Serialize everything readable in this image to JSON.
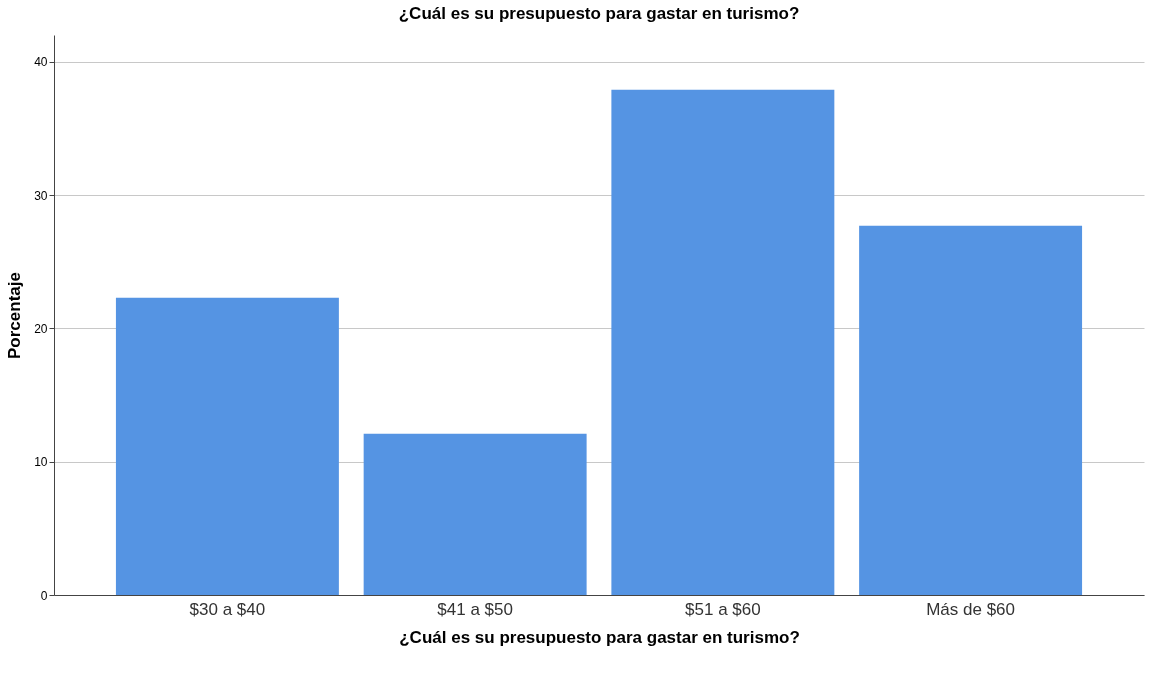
{
  "chart_data": {
    "type": "bar",
    "title": "¿Cuál es su presupuesto para gastar en turismo?",
    "xlabel": "¿Cuál es su presupuesto para gastar en turismo?",
    "ylabel": "Porcentaje",
    "categories": [
      "$30 a $40",
      "$41 a $50",
      "$51 a $60",
      "Más de $60"
    ],
    "values": [
      22.3,
      12.1,
      37.9,
      27.7
    ],
    "color": "#5594e3",
    "ylim": [
      0,
      42
    ],
    "yticks": [
      0,
      10,
      20,
      30,
      40
    ],
    "grid": "y"
  }
}
